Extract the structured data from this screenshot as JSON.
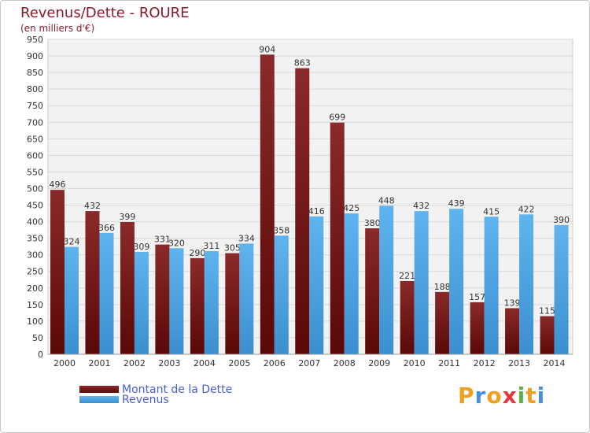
{
  "chart_data": {
    "type": "bar",
    "title": "Revenus/Dette - ROURE",
    "subtitle": "(en milliers d'€)",
    "categories": [
      "2000",
      "2001",
      "2002",
      "2003",
      "2004",
      "2005",
      "2006",
      "2007",
      "2008",
      "2009",
      "2010",
      "2011",
      "2012",
      "2013",
      "2014"
    ],
    "series": [
      {
        "name": "Montant de la Dette",
        "values": [
          496,
          432,
          399,
          331,
          290,
          305,
          904,
          863,
          699,
          380,
          221,
          188,
          157,
          139,
          115
        ],
        "color": "#7a1c1c"
      },
      {
        "name": "Revenus",
        "values": [
          324,
          366,
          309,
          320,
          311,
          334,
          358,
          416,
          425,
          448,
          432,
          439,
          415,
          422,
          390
        ],
        "color": "#4ea6e4"
      }
    ],
    "ylim": [
      0,
      950
    ],
    "y_ticks": [
      0,
      50,
      100,
      150,
      200,
      250,
      300,
      350,
      400,
      450,
      500,
      550,
      600,
      650,
      700,
      750,
      800,
      850,
      900,
      950
    ],
    "grid": true,
    "legend_position": "bottom-left"
  },
  "logo": {
    "text": "Proxiti",
    "letters": [
      "P",
      "r",
      "o",
      "x",
      "i",
      "t",
      "i"
    ],
    "colors": [
      "#f0a020",
      "#4a8ee0",
      "#f0a020",
      "#e03a3a",
      "#58b44a",
      "#f0a020",
      "#4a8ee0"
    ]
  }
}
